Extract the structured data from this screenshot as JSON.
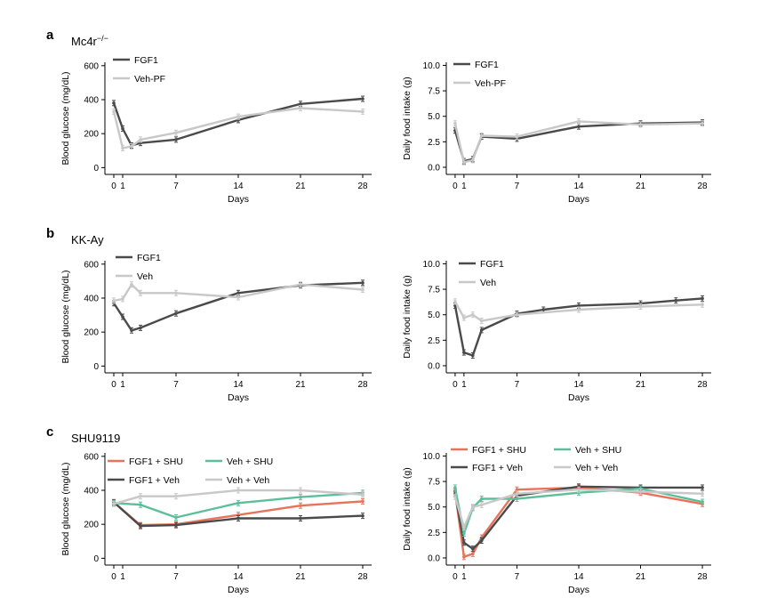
{
  "colors": {
    "dark": "#4a4a4a",
    "light": "#c8c8c8",
    "red": "#e8735a",
    "green": "#5dbf9a"
  },
  "chart_data": [
    {
      "id": "a-glucose",
      "type": "line",
      "panel_letter": "a",
      "panel_title": "Mc4r−/−",
      "xlabel": "Days",
      "ylabel": "Blood glucose (mg/dL)",
      "xticks": [
        "0",
        "1",
        "7",
        "14",
        "21",
        "28"
      ],
      "yticks": [
        "0",
        "200",
        "400",
        "600"
      ],
      "xlim": [
        -1,
        29
      ],
      "ylim": [
        -40,
        620
      ],
      "ytick_values": [
        0,
        200,
        400,
        600
      ],
      "legend_position": "top-left",
      "series": [
        {
          "name": "FGF1",
          "color": "dark",
          "x": [
            0,
            1,
            2,
            3,
            7,
            14,
            21,
            28
          ],
          "y": [
            380,
            230,
            130,
            145,
            165,
            280,
            375,
            405
          ]
        },
        {
          "name": "Veh-PF",
          "color": "light",
          "x": [
            0,
            1,
            2,
            3,
            7,
            14,
            21,
            28
          ],
          "y": [
            330,
            115,
            125,
            165,
            205,
            300,
            350,
            330
          ]
        }
      ]
    },
    {
      "id": "a-food",
      "type": "line",
      "xlabel": "Days",
      "ylabel": "Daily food intake (g)",
      "xticks": [
        "0",
        "1",
        "7",
        "14",
        "21",
        "28"
      ],
      "yticks": [
        "0.0",
        "2.5",
        "5.0",
        "7.5",
        "10.0"
      ],
      "xlim": [
        -1,
        29
      ],
      "ylim": [
        -0.7,
        10.3
      ],
      "ytick_values": [
        0,
        2.5,
        5,
        7.5,
        10
      ],
      "legend_position": "top-left",
      "series": [
        {
          "name": "FGF1",
          "color": "dark",
          "x": [
            0,
            1,
            2,
            3,
            7,
            14,
            21,
            28
          ],
          "y": [
            3.6,
            0.6,
            0.8,
            3.0,
            2.8,
            4.0,
            4.3,
            4.4
          ]
        },
        {
          "name": "Veh-PF",
          "color": "light",
          "x": [
            0,
            1,
            2,
            3,
            7,
            14,
            21,
            28
          ],
          "y": [
            4.3,
            0.5,
            0.7,
            3.1,
            3.0,
            4.5,
            4.2,
            4.3
          ]
        }
      ]
    },
    {
      "id": "b-glucose",
      "type": "line",
      "panel_letter": "b",
      "panel_title": "KK-Ay",
      "xlabel": "Days",
      "ylabel": "Blood glucose (mg/dL)",
      "xticks": [
        "0",
        "1",
        "7",
        "14",
        "21",
        "28"
      ],
      "yticks": [
        "0",
        "200",
        "400",
        "600"
      ],
      "xlim": [
        -1,
        29
      ],
      "ylim": [
        -40,
        620
      ],
      "ytick_values": [
        0,
        200,
        400,
        600
      ],
      "legend_position": "top-left",
      "series": [
        {
          "name": "FGF1",
          "color": "dark",
          "x": [
            0,
            1,
            2,
            3,
            7,
            14,
            21,
            28
          ],
          "y": [
            370,
            290,
            210,
            225,
            310,
            430,
            475,
            490
          ]
        },
        {
          "name": "Veh",
          "color": "light",
          "x": [
            0,
            1,
            2,
            3,
            7,
            14,
            21,
            28
          ],
          "y": [
            385,
            395,
            480,
            430,
            430,
            405,
            480,
            450
          ]
        }
      ]
    },
    {
      "id": "b-food",
      "type": "line",
      "xlabel": "Days",
      "ylabel": "Daily food intake (g)",
      "xticks": [
        "0",
        "1",
        "7",
        "14",
        "21",
        "28"
      ],
      "yticks": [
        "0.0",
        "2.5",
        "5.0",
        "7.5",
        "10.0"
      ],
      "xlim": [
        -1,
        29
      ],
      "ylim": [
        -0.7,
        10.3
      ],
      "ytick_values": [
        0,
        2.5,
        5,
        7.5,
        10
      ],
      "legend_position": "top-left",
      "series": [
        {
          "name": "FGF1",
          "color": "dark",
          "x": [
            0,
            1,
            2,
            3,
            7,
            10,
            14,
            21,
            25,
            28
          ],
          "y": [
            5.9,
            1.3,
            1.0,
            3.5,
            5.1,
            5.5,
            5.9,
            6.1,
            6.4,
            6.6
          ]
        },
        {
          "name": "Veh",
          "color": "light",
          "x": [
            0,
            1,
            2,
            3,
            7,
            14,
            21,
            28
          ],
          "y": [
            6.3,
            4.7,
            5.0,
            4.4,
            5.0,
            5.5,
            5.8,
            6.0
          ]
        }
      ]
    },
    {
      "id": "c-glucose",
      "type": "line",
      "panel_letter": "c",
      "panel_title": "SHU9119",
      "xlabel": "Days",
      "ylabel": "Blood glucose (mg/dL)",
      "xticks": [
        "0",
        "1",
        "7",
        "14",
        "21",
        "28"
      ],
      "yticks": [
        "0",
        "200",
        "400",
        "600"
      ],
      "xlim": [
        -1,
        29
      ],
      "ylim": [
        -40,
        620
      ],
      "ytick_values": [
        0,
        200,
        400,
        600
      ],
      "legend_position": "top",
      "series": [
        {
          "name": "FGF1 + SHU",
          "color": "red",
          "x": [
            0,
            3,
            7,
            14,
            21,
            28
          ],
          "y": [
            330,
            195,
            200,
            255,
            310,
            335
          ]
        },
        {
          "name": "FGF1 + Veh",
          "color": "dark",
          "x": [
            0,
            3,
            7,
            14,
            21,
            28
          ],
          "y": [
            330,
            190,
            195,
            235,
            235,
            250
          ]
        },
        {
          "name": "Veh + SHU",
          "color": "green",
          "x": [
            0,
            3,
            7,
            14,
            21,
            28
          ],
          "y": [
            325,
            315,
            240,
            325,
            360,
            385
          ]
        },
        {
          "name": "Veh + Veh",
          "color": "light",
          "x": [
            0,
            3,
            7,
            14,
            21,
            28
          ],
          "y": [
            320,
            365,
            365,
            400,
            400,
            375
          ]
        }
      ]
    },
    {
      "id": "c-food",
      "type": "line",
      "xlabel": "Days",
      "ylabel": "Daily food intake (g)",
      "xticks": [
        "0",
        "1",
        "7",
        "14",
        "21",
        "28"
      ],
      "yticks": [
        "0.0",
        "2.5",
        "5.0",
        "7.5",
        "10.0"
      ],
      "xlim": [
        -1,
        29
      ],
      "ylim": [
        -0.7,
        10.3
      ],
      "ytick_values": [
        0,
        2.5,
        5,
        7.5,
        10
      ],
      "legend_position": "top",
      "series": [
        {
          "name": "FGF1 + SHU",
          "color": "red",
          "x": [
            0,
            1,
            2,
            3,
            7,
            14,
            21,
            28
          ],
          "y": [
            6.5,
            0.1,
            0.4,
            2.0,
            6.7,
            6.9,
            6.4,
            5.3
          ]
        },
        {
          "name": "FGF1 + Veh",
          "color": "dark",
          "x": [
            0,
            1,
            2,
            3,
            7,
            14,
            21,
            28
          ],
          "y": [
            6.3,
            1.5,
            0.9,
            1.7,
            6.1,
            7.0,
            6.9,
            6.9
          ]
        },
        {
          "name": "Veh + SHU",
          "color": "green",
          "x": [
            0,
            1,
            2,
            3,
            7,
            14,
            21,
            28
          ],
          "y": [
            6.9,
            2.4,
            4.9,
            5.8,
            5.8,
            6.4,
            6.8,
            5.5
          ]
        },
        {
          "name": "Veh + Veh",
          "color": "light",
          "x": [
            0,
            1,
            2,
            3,
            7,
            14,
            21,
            28
          ],
          "y": [
            6.0,
            3.0,
            5.0,
            5.2,
            6.3,
            6.7,
            6.5,
            6.3
          ]
        }
      ]
    }
  ]
}
